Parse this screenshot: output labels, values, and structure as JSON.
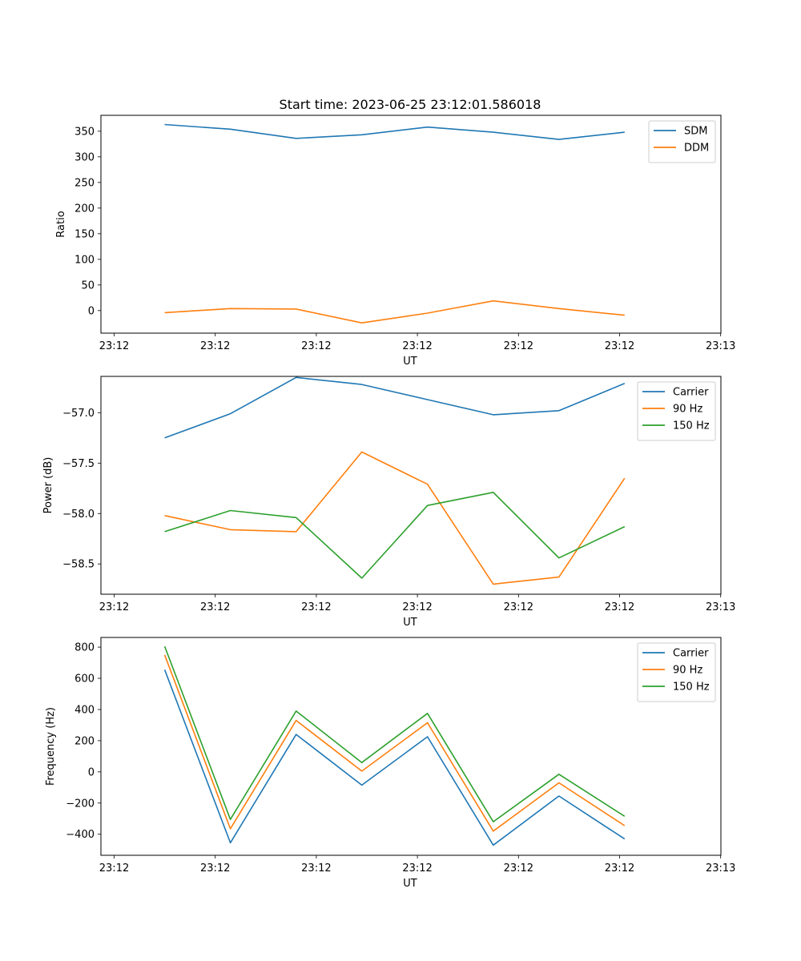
{
  "title": "Start time: 2023-06-25 23:12:01.586018",
  "chart_data": [
    {
      "type": "line",
      "title": "Start time: 2023-06-25 23:12:01.586018",
      "xlabel": "UT",
      "ylabel": "Ratio",
      "x_ticks": [
        "23:12",
        "23:12",
        "23:12",
        "23:12",
        "23:12",
        "23:12",
        "23:13"
      ],
      "xlim": [
        0,
        6
      ],
      "x": [
        0.5,
        1.15,
        1.8,
        2.45,
        3.1,
        3.75,
        4.4,
        5.05
      ],
      "yticks": [
        0,
        50,
        100,
        150,
        200,
        250,
        300,
        350
      ],
      "ylim": [
        -44,
        381
      ],
      "legend": "upper right",
      "series": [
        {
          "name": "SDM",
          "color": "#1f77b4",
          "values": [
            363,
            354,
            336,
            343,
            358,
            348,
            334,
            348
          ]
        },
        {
          "name": "DDM",
          "color": "#ff7f0e",
          "values": [
            -4,
            4,
            3,
            -24,
            -5,
            19,
            4,
            -9
          ]
        }
      ]
    },
    {
      "type": "line",
      "xlabel": "UT",
      "ylabel": "Power (dB)",
      "x_ticks": [
        "23:12",
        "23:12",
        "23:12",
        "23:12",
        "23:12",
        "23:12",
        "23:13"
      ],
      "xlim": [
        0,
        6
      ],
      "x": [
        0.5,
        1.15,
        1.8,
        2.45,
        3.1,
        3.75,
        4.4,
        5.05
      ],
      "yticks": [
        -58.5,
        -58.0,
        -57.5,
        -57.0
      ],
      "ytick_labels": [
        "−58.5",
        "−58.0",
        "−57.5",
        "−57.0"
      ],
      "ylim": [
        -58.8,
        -56.64
      ],
      "legend": "upper right",
      "series": [
        {
          "name": "Carrier",
          "color": "#1f77b4",
          "values": [
            -57.25,
            -57.01,
            -56.65,
            -56.72,
            -56.87,
            -57.02,
            -56.98,
            -56.71
          ]
        },
        {
          "name": "90 Hz",
          "color": "#ff7f0e",
          "values": [
            -58.02,
            -58.16,
            -58.18,
            -57.39,
            -57.71,
            -58.7,
            -58.63,
            -57.65
          ]
        },
        {
          "name": "150 Hz",
          "color": "#2ca02c",
          "values": [
            -58.18,
            -57.97,
            -58.04,
            -58.64,
            -57.92,
            -57.79,
            -58.44,
            -58.13
          ]
        }
      ]
    },
    {
      "type": "line",
      "xlabel": "UT",
      "ylabel": "Frequency (Hz)",
      "x_ticks": [
        "23:12",
        "23:12",
        "23:12",
        "23:12",
        "23:12",
        "23:12",
        "23:13"
      ],
      "xlim": [
        0,
        6
      ],
      "x": [
        0.5,
        1.15,
        1.8,
        2.45,
        3.1,
        3.75,
        4.4,
        5.05
      ],
      "yticks": [
        -400,
        -200,
        0,
        200,
        400,
        600,
        800
      ],
      "ytick_labels": [
        "−400",
        "−200",
        "0",
        "200",
        "400",
        "600",
        "800"
      ],
      "ylim": [
        -535,
        862
      ],
      "legend": "upper right",
      "series": [
        {
          "name": "Carrier",
          "color": "#1f77b4",
          "values": [
            655,
            -455,
            240,
            -85,
            225,
            -470,
            -155,
            -430
          ]
        },
        {
          "name": "90 Hz",
          "color": "#ff7f0e",
          "values": [
            750,
            -365,
            330,
            5,
            315,
            -380,
            -70,
            -345
          ]
        },
        {
          "name": "150 Hz",
          "color": "#2ca02c",
          "values": [
            805,
            -305,
            390,
            60,
            375,
            -320,
            -15,
            -285
          ]
        }
      ]
    }
  ]
}
